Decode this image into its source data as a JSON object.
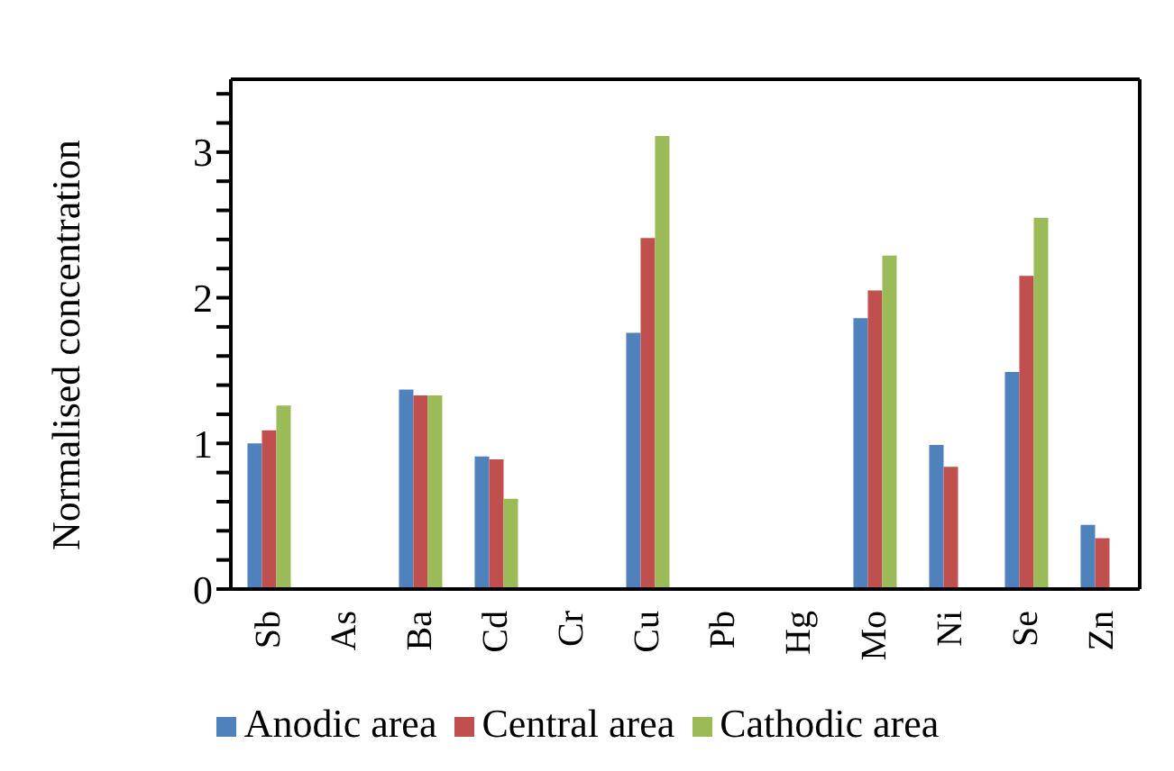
{
  "chart_data": {
    "type": "bar",
    "ylabel": "Normalised concentration",
    "categories": [
      "Sb",
      "As",
      "Ba",
      "Cd",
      "Cr",
      "Cu",
      "Pb",
      "Hg",
      "Mo",
      "Ni",
      "Se",
      "Zn"
    ],
    "series": [
      {
        "name": "Anodic area",
        "color": "#4f81bd",
        "values": [
          1.0,
          null,
          1.37,
          0.91,
          null,
          1.76,
          null,
          null,
          1.86,
          0.99,
          1.49,
          0.44
        ]
      },
      {
        "name": "Central area",
        "color": "#c0504d",
        "values": [
          1.09,
          null,
          1.33,
          0.89,
          null,
          2.41,
          null,
          null,
          2.05,
          0.84,
          2.15,
          0.35
        ]
      },
      {
        "name": "Cathodic area",
        "color": "#9bbb59",
        "values": [
          1.26,
          null,
          1.33,
          0.62,
          null,
          3.11,
          null,
          null,
          2.29,
          null,
          2.55,
          null
        ]
      }
    ],
    "ylim": [
      0,
      3.5
    ],
    "yticks": [
      0,
      {
        "value": 0.2,
        "label": null
      },
      {
        "value": 0.4,
        "label": null
      },
      {
        "value": 0.6,
        "label": null
      },
      {
        "value": 0.8,
        "label": null
      },
      1,
      {
        "value": 1.2,
        "label": null
      },
      {
        "value": 1.4,
        "label": null
      },
      {
        "value": 1.6,
        "label": null
      },
      {
        "value": 1.8,
        "label": null
      },
      2,
      {
        "value": 2.2,
        "label": null
      },
      {
        "value": 2.4,
        "label": null
      },
      {
        "value": 2.6,
        "label": null
      },
      {
        "value": 2.8,
        "label": null
      },
      3,
      {
        "value": 3.2,
        "label": null
      },
      {
        "value": 3.4,
        "label": null
      }
    ],
    "grid": false,
    "legend": "bottom"
  }
}
